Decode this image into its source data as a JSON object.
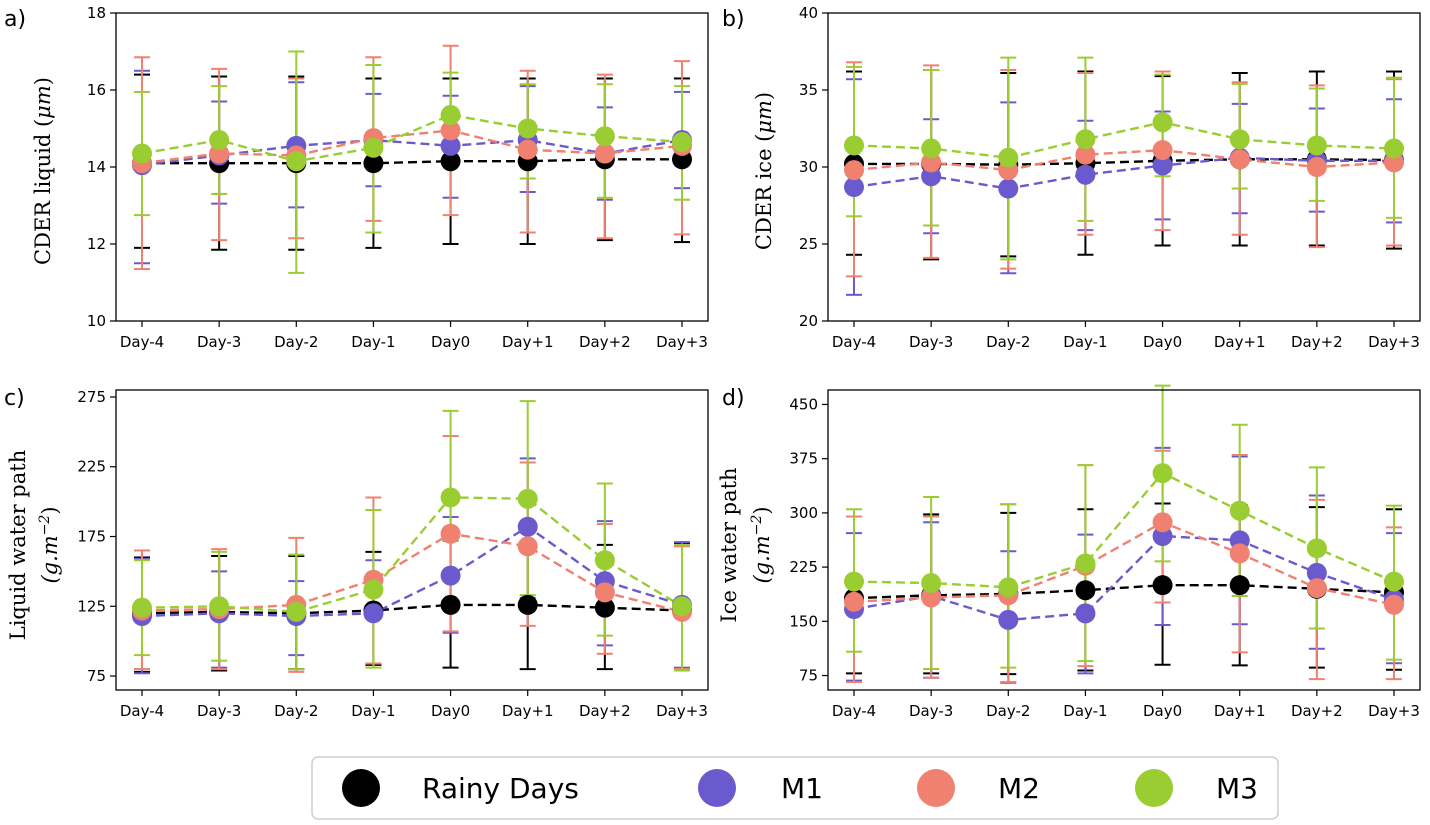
{
  "series_styles": [
    {
      "key": "rainy",
      "color": "#000000"
    },
    {
      "key": "m1",
      "color": "#6a5acd"
    },
    {
      "key": "m2",
      "color": "#f08070"
    },
    {
      "key": "m3",
      "color": "#9acd32"
    }
  ],
  "legend": {
    "items": [
      {
        "label": "Rainy Days",
        "color": "#000000"
      },
      {
        "label": "M1",
        "color": "#6a5acd"
      },
      {
        "label": "M2",
        "color": "#f08070"
      },
      {
        "label": "M3",
        "color": "#9acd32"
      }
    ]
  },
  "chart_data": [
    {
      "panel": "a)",
      "type": "line",
      "ylabel_main": "CDER liquid (",
      "ylabel_unit": "μm",
      "ylabel_close": ")",
      "categories": [
        "Day-4",
        "Day-3",
        "Day-2",
        "Day-1",
        "Day0",
        "Day+1",
        "Day+2",
        "Day+3"
      ],
      "ylim": [
        10,
        18
      ],
      "yticks": [
        10,
        12,
        14,
        16,
        18
      ],
      "series": [
        {
          "name": "Rainy Days",
          "values": [
            14.1,
            14.1,
            14.1,
            14.1,
            14.15,
            14.15,
            14.2,
            14.2
          ],
          "err_low": [
            11.9,
            11.85,
            11.85,
            11.9,
            12.0,
            12.0,
            12.1,
            12.05
          ],
          "err_high": [
            16.4,
            16.35,
            16.35,
            16.3,
            16.3,
            16.3,
            16.3,
            16.3
          ]
        },
        {
          "name": "M1",
          "values": [
            14.05,
            14.3,
            14.55,
            14.7,
            14.55,
            14.7,
            14.35,
            14.7
          ],
          "err_low": [
            11.5,
            13.05,
            12.95,
            13.5,
            13.2,
            13.35,
            13.15,
            13.45
          ],
          "err_high": [
            16.5,
            15.7,
            16.2,
            15.9,
            15.85,
            16.1,
            15.55,
            15.95
          ]
        },
        {
          "name": "M2",
          "values": [
            14.1,
            14.35,
            14.3,
            14.75,
            14.95,
            14.45,
            14.35,
            14.55
          ],
          "err_low": [
            11.35,
            12.1,
            12.15,
            12.6,
            12.75,
            12.3,
            12.15,
            12.25
          ],
          "err_high": [
            16.85,
            16.55,
            16.3,
            16.85,
            17.15,
            16.5,
            16.4,
            16.75
          ]
        },
        {
          "name": "M3",
          "values": [
            14.35,
            14.7,
            14.15,
            14.5,
            15.35,
            15.0,
            14.8,
            14.65
          ],
          "err_low": [
            12.75,
            13.3,
            11.25,
            12.3,
            14.2,
            13.7,
            13.2,
            13.15
          ],
          "err_high": [
            15.95,
            16.1,
            17.0,
            16.65,
            16.45,
            16.15,
            16.15,
            16.1
          ]
        }
      ]
    },
    {
      "panel": "b)",
      "type": "line",
      "ylabel_main": "CDER ice (",
      "ylabel_unit": "μm",
      "ylabel_close": ")",
      "categories": [
        "Day-4",
        "Day-3",
        "Day-2",
        "Day-1",
        "Day0",
        "Day+1",
        "Day+2",
        "Day+3"
      ],
      "ylim": [
        20,
        40
      ],
      "yticks": [
        20,
        25,
        30,
        35,
        40
      ],
      "series": [
        {
          "name": "Rainy Days",
          "values": [
            30.2,
            30.2,
            30.15,
            30.25,
            30.4,
            30.5,
            30.5,
            30.45
          ],
          "err_low": [
            24.3,
            24.0,
            24.2,
            24.3,
            24.9,
            24.9,
            24.9,
            24.7
          ],
          "err_high": [
            36.2,
            36.3,
            36.1,
            36.2,
            35.9,
            36.1,
            36.2,
            36.2
          ]
        },
        {
          "name": "M1",
          "values": [
            28.7,
            29.4,
            28.6,
            29.5,
            30.1,
            30.6,
            30.4,
            30.4
          ],
          "err_low": [
            21.7,
            25.7,
            23.1,
            25.9,
            26.6,
            27.0,
            27.1,
            26.4
          ],
          "err_high": [
            35.7,
            33.1,
            34.2,
            33.0,
            33.6,
            34.1,
            33.8,
            34.4
          ]
        },
        {
          "name": "M2",
          "values": [
            29.8,
            30.3,
            29.8,
            30.8,
            31.1,
            30.5,
            30.0,
            30.3
          ],
          "err_low": [
            22.9,
            24.1,
            23.4,
            25.6,
            25.9,
            25.6,
            24.8,
            24.9
          ],
          "err_high": [
            36.8,
            36.6,
            36.3,
            36.1,
            36.2,
            35.5,
            35.3,
            35.7
          ]
        },
        {
          "name": "M3",
          "values": [
            31.4,
            31.2,
            30.6,
            31.8,
            32.9,
            31.8,
            31.4,
            31.2
          ],
          "err_low": [
            26.8,
            26.2,
            24.0,
            26.5,
            29.4,
            28.6,
            27.8,
            26.7
          ],
          "err_high": [
            36.5,
            36.3,
            37.1,
            37.1,
            36.0,
            35.4,
            35.1,
            35.8
          ]
        }
      ]
    },
    {
      "panel": "c)",
      "type": "line",
      "ylabel_main": "Liquid water path",
      "ylabel_unit": "(g.m",
      "ylabel_sup": "−2",
      "ylabel_close": ")",
      "categories": [
        "Day-4",
        "Day-3",
        "Day-2",
        "Day-1",
        "Day0",
        "Day+1",
        "Day+2",
        "Day+3"
      ],
      "ylim": [
        65,
        280
      ],
      "yticks": [
        75,
        125,
        175,
        225,
        275
      ],
      "series": [
        {
          "name": "Rainy Days",
          "values": [
            120,
            121,
            120,
            122,
            126,
            126,
            124,
            122
          ],
          "err_low": [
            78,
            79,
            80,
            83,
            81,
            80,
            80,
            79
          ],
          "err_high": [
            160,
            161,
            161,
            164,
            172,
            170,
            169,
            170
          ]
        },
        {
          "name": "M1",
          "values": [
            118,
            120,
            118,
            120,
            147,
            182,
            143,
            126
          ],
          "err_low": [
            77,
            81,
            90,
            84,
            106,
            131,
            97,
            81
          ],
          "err_high": [
            159,
            150,
            143,
            158,
            189,
            231,
            186,
            171
          ]
        },
        {
          "name": "M2",
          "values": [
            122,
            123,
            126,
            144,
            177,
            168,
            135,
            121
          ],
          "err_low": [
            80,
            80,
            78,
            84,
            107,
            111,
            91,
            80
          ],
          "err_high": [
            165,
            166,
            174,
            203,
            247,
            228,
            184,
            168
          ]
        },
        {
          "name": "M3",
          "values": [
            124,
            125,
            121,
            137,
            203,
            202,
            158,
            125
          ],
          "err_low": [
            90,
            86,
            80,
            81,
            172,
            133,
            104,
            79
          ],
          "err_high": [
            158,
            164,
            162,
            194,
            265,
            272,
            213,
            169
          ]
        }
      ]
    },
    {
      "panel": "d)",
      "type": "line",
      "ylabel_main": "Ice water path",
      "ylabel_unit": "(g.m",
      "ylabel_sup": "−2",
      "ylabel_close": ")",
      "categories": [
        "Day-4",
        "Day-3",
        "Day-2",
        "Day-1",
        "Day0",
        "Day+1",
        "Day+2",
        "Day+3"
      ],
      "ylim": [
        55,
        470
      ],
      "yticks": [
        75,
        150,
        225,
        300,
        375,
        450
      ],
      "series": [
        {
          "name": "Rainy Days",
          "values": [
            182,
            186,
            188,
            193,
            200,
            200,
            195,
            190
          ],
          "err_low": [
            78,
            78,
            77,
            82,
            90,
            89,
            86,
            83
          ],
          "err_high": [
            295,
            298,
            300,
            305,
            313,
            311,
            308,
            305
          ]
        },
        {
          "name": "M1",
          "values": [
            167,
            185,
            152,
            161,
            268,
            262,
            217,
            180
          ],
          "err_low": [
            68,
            72,
            65,
            78,
            145,
            146,
            112,
            92
          ],
          "err_high": [
            272,
            287,
            247,
            270,
            390,
            378,
            324,
            272
          ]
        },
        {
          "name": "M2",
          "values": [
            177,
            183,
            186,
            227,
            287,
            244,
            196,
            173
          ],
          "err_low": [
            66,
            72,
            66,
            88,
            176,
            107,
            70,
            70
          ],
          "err_high": [
            295,
            295,
            312,
            366,
            386,
            380,
            318,
            280
          ]
        },
        {
          "name": "M3",
          "values": [
            205,
            203,
            197,
            230,
            355,
            303,
            251,
            205
          ],
          "err_low": [
            108,
            84,
            86,
            95,
            233,
            185,
            140,
            97
          ],
          "err_high": [
            305,
            322,
            312,
            366,
            476,
            422,
            363,
            310
          ]
        }
      ]
    }
  ]
}
